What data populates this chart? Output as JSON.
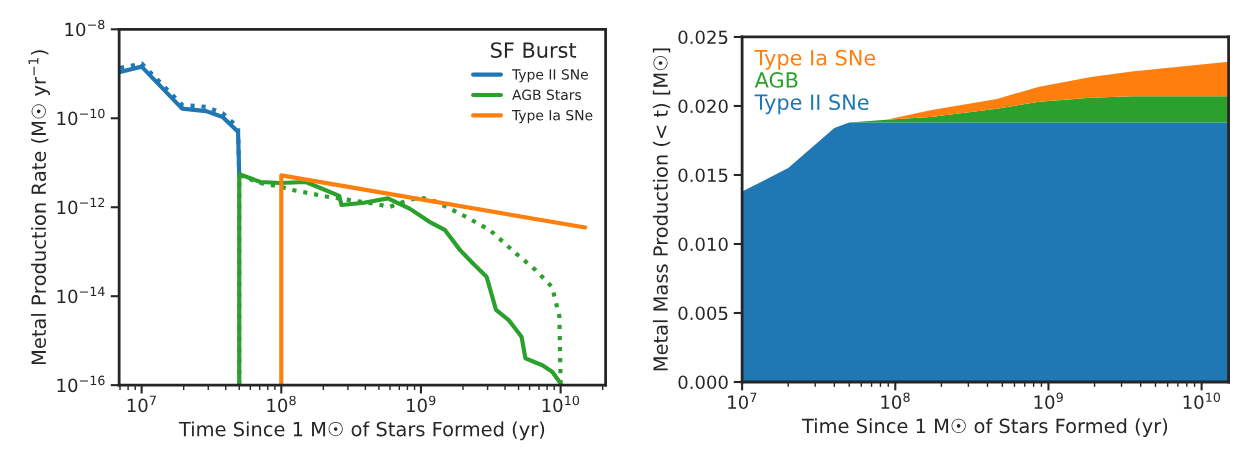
{
  "chart_data": [
    {
      "type": "line",
      "log": "xy",
      "xlabel": "Time Since 1 M☉ of Stars Formed (yr)",
      "ylabel": "Metal Production Rate (M☉ yr$^{−1}$)",
      "legend": "top right",
      "legend_title": "SF Burst",
      "xlim": [
        6900000.0,
        21000000000.0
      ],
      "ylim": [
        1e-16,
        1e-08
      ],
      "xticks": [
        {
          "value": 10000000.0,
          "label": "10$^{7}$"
        },
        {
          "value": 100000000.0,
          "label": "10$^{8}$"
        },
        {
          "value": 1000000000.0,
          "label": "10$^{9}$"
        },
        {
          "value": 10000000000.0,
          "label": "10$^{10}$"
        }
      ],
      "yticks": [
        {
          "value": 1e-16,
          "label": "10$^{−16}$"
        },
        {
          "value": 1e-14,
          "label": "10$^{−14}$"
        },
        {
          "value": 1e-12,
          "label": "10$^{−12}$"
        },
        {
          "value": 1e-10,
          "label": "10$^{−10}$"
        },
        {
          "value": 1e-08,
          "label": "10$^{−8}$"
        }
      ],
      "series": [
        {
          "name": "Type II SNe",
          "color": "#1f77b4",
          "line_style": "solid",
          "x": [
            7000000.0,
            10000000.0,
            19500000.0,
            29000000.0,
            38000000.0,
            49000000.0,
            50000000.0
          ],
          "values": [
            1.1e-09,
            1.45e-09,
            1.65e-10,
            1.45e-10,
            1.07e-10,
            5e-11,
            5.2e-12
          ]
        },
        {
          "color": "#1f77b4",
          "line_style": "dotted",
          "x": [
            7000000.0,
            10000000.0,
            19500000.0,
            29000000.0,
            38000000.0,
            49000000.0,
            50000000.0
          ],
          "values": [
            1.35e-09,
            1.7e-09,
            2e-10,
            1.8e-10,
            1.3e-10,
            6.2e-11,
            5e-12
          ]
        },
        {
          "name": "AGB Stars",
          "color": "#2ca02c",
          "line_style": "solid",
          "x": [
            50000000.0,
            50000000.0,
            71000000.0,
            98000000.0,
            150000000.0,
            260000000.0,
            270000000.0,
            390000000.0,
            580000000.0,
            830000000.0,
            1150000000.0,
            1480000000.0,
            1900000000.0,
            2350000000.0,
            2950000000.0,
            3450000000.0,
            4250000000.0,
            5250000000.0,
            5600000000.0,
            7400000000.0,
            8700000000.0,
            10000000000.0
          ],
          "values": [
            1e-16,
            5.5e-12,
            3.7e-12,
            3.5e-12,
            3.7e-12,
            1.8e-12,
            1.12e-12,
            1.26e-12,
            1.58e-12,
            9.3e-13,
            4.7e-13,
            3.1e-13,
            1.1e-13,
            5.5e-14,
            2.75e-14,
            4.9e-15,
            2.9e-15,
            1.23e-15,
            4e-16,
            2.8e-16,
            2e-16,
            1.1e-16
          ]
        },
        {
          "color": "#2ca02c",
          "line_style": "dotted",
          "x": [
            50000000.0,
            50000000.0,
            71000000.0,
            98000000.0,
            120000000.0,
            210000000.0,
            440000000.0,
            600000000.0,
            810000000.0,
            1000000000.0,
            1290000000.0,
            2000000000.0,
            3100000000.0,
            4800000000.0,
            6600000000.0,
            8700000000.0,
            9800000000.0,
            10000000000.0
          ],
          "values": [
            1e-16,
            5.2e-12,
            3.5e-12,
            2.9e-12,
            2.45e-12,
            1.74e-12,
            1.23e-12,
            1.02e-12,
            1.45e-12,
            1.66e-12,
            1.32e-12,
            6.6e-13,
            3.1e-13,
            9.1e-14,
            3.9e-14,
            1.6e-14,
            3.5e-15,
            1.1e-16
          ]
        },
        {
          "name": "Type Ia SNe",
          "color": "#ff7f0e",
          "line_style": "solid",
          "x": [
            100000000.0,
            100000000.0,
            15000000000.0
          ],
          "values": [
            1e-16,
            5.2e-12,
            3.5e-13
          ]
        }
      ]
    },
    {
      "type": "area",
      "stacked": true,
      "log": "x",
      "xlabel": "Time Since 1 M☉ of Stars Formed (yr)",
      "ylabel": "Metal Mass Production (< t) [M☉]",
      "legend": "top left",
      "xlim": [
        10000000.0,
        15000000000.0
      ],
      "ylim": [
        0,
        0.025
      ],
      "xticks": [
        {
          "value": 10000000.0,
          "label": "10$^{7}$"
        },
        {
          "value": 100000000.0,
          "label": "10$^{8}$"
        },
        {
          "value": 1000000000.0,
          "label": "10$^{9}$"
        },
        {
          "value": 10000000000.0,
          "label": "10$^{10}$"
        }
      ],
      "yticks": [
        {
          "value": 0,
          "label": "0.000"
        },
        {
          "value": 0.005,
          "label": "0.005"
        },
        {
          "value": 0.01,
          "label": "0.010"
        },
        {
          "value": 0.015,
          "label": "0.015"
        },
        {
          "value": 0.02,
          "label": "0.020"
        },
        {
          "value": 0.025,
          "label": "0.025"
        }
      ],
      "x": [
        10000000.0,
        20000000.0,
        40000000.0,
        50000000.0,
        87000000.0,
        170000000.0,
        460000000.0,
        870000000.0,
        1900000000.0,
        3500000000.0,
        15000000000.0
      ],
      "series": [
        {
          "name": "Type II SNe",
          "color": "#1f77b4",
          "values": [
            0.0138,
            0.0155,
            0.0184,
            0.0188,
            0.0188,
            0.0188,
            0.0188,
            0.0188,
            0.0188,
            0.0188,
            0.0188
          ]
        },
        {
          "name": "AGB",
          "color": "#2ca02c",
          "values": [
            0,
            0,
            0,
            0,
            0.0002,
            0.0004,
            0.001,
            0.0015,
            0.0018,
            0.0019,
            0.0019
          ]
        },
        {
          "name": "Type Ia SNe",
          "color": "#ff7f0e",
          "values": [
            0,
            0,
            0,
            0,
            0,
            0.0005,
            0.0007,
            0.0011,
            0.0015,
            0.0018,
            0.0025
          ]
        }
      ]
    }
  ]
}
